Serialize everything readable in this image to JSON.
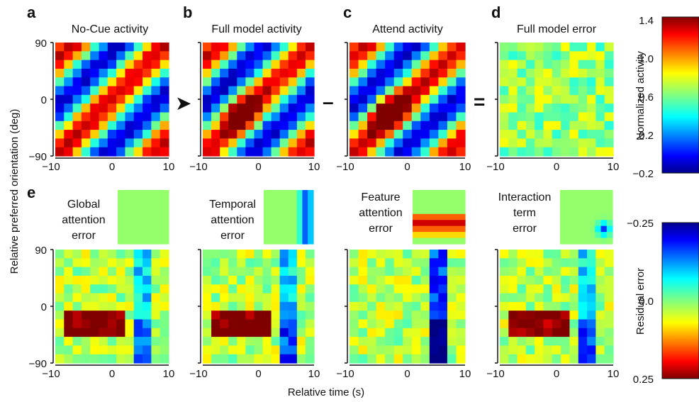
{
  "panel_labels": {
    "a": "a",
    "b": "b",
    "c": "c",
    "d": "d",
    "e": "e"
  },
  "titles": {
    "a": "No-Cue activity",
    "b": "Full model activity",
    "c": "Attend activity",
    "d": "Full model error"
  },
  "operators": {
    "arrow": "➤",
    "minus": "–",
    "equals": "="
  },
  "inset_labels": {
    "global": [
      "Global",
      "attention",
      "error"
    ],
    "temporal": [
      "Temporal",
      "attention",
      "error"
    ],
    "feature": [
      "Feature",
      "attention",
      "error"
    ],
    "interaction": [
      "Interaction",
      "term",
      "error"
    ]
  },
  "axes": {
    "ylabel": "Relative preferred orientation (deg)",
    "xlabel": "Relative time (s)",
    "xticks": [
      "−10",
      "0",
      "10"
    ],
    "yticks": [
      "90",
      "0",
      "−90"
    ]
  },
  "colorbars": [
    {
      "label": "Normalized activity",
      "ticks": [
        "1.4",
        "1.0",
        "0.6",
        "0.2",
        "−0.2"
      ]
    },
    {
      "label": "Residual error",
      "ticks": [
        "−0.25",
        "0.0",
        "0.25"
      ]
    }
  ],
  "chart_data": [
    {
      "type": "heatmap",
      "panel": "a",
      "title": "No-Cue activity",
      "xlim": [
        -10,
        10
      ],
      "ylim": [
        -90,
        90
      ],
      "clim": [
        -0.2,
        1.4
      ]
    },
    {
      "type": "heatmap",
      "panel": "b",
      "title": "Full model activity",
      "xlim": [
        -10,
        10
      ],
      "ylim": [
        -90,
        90
      ],
      "clim": [
        -0.2,
        1.4
      ]
    },
    {
      "type": "heatmap",
      "panel": "c",
      "title": "Attend activity",
      "xlim": [
        -10,
        10
      ],
      "ylim": [
        -90,
        90
      ],
      "clim": [
        -0.2,
        1.4
      ]
    },
    {
      "type": "heatmap",
      "panel": "d",
      "title": "Full model error",
      "xlim": [
        -10,
        10
      ],
      "ylim": [
        -90,
        90
      ],
      "clim": [
        -0.2,
        1.4
      ]
    },
    {
      "type": "heatmap",
      "panel": "e",
      "xlim": [
        -10,
        10
      ],
      "ylim": [
        -90,
        90
      ],
      "clim": [
        0.25,
        -0.25
      ]
    }
  ]
}
